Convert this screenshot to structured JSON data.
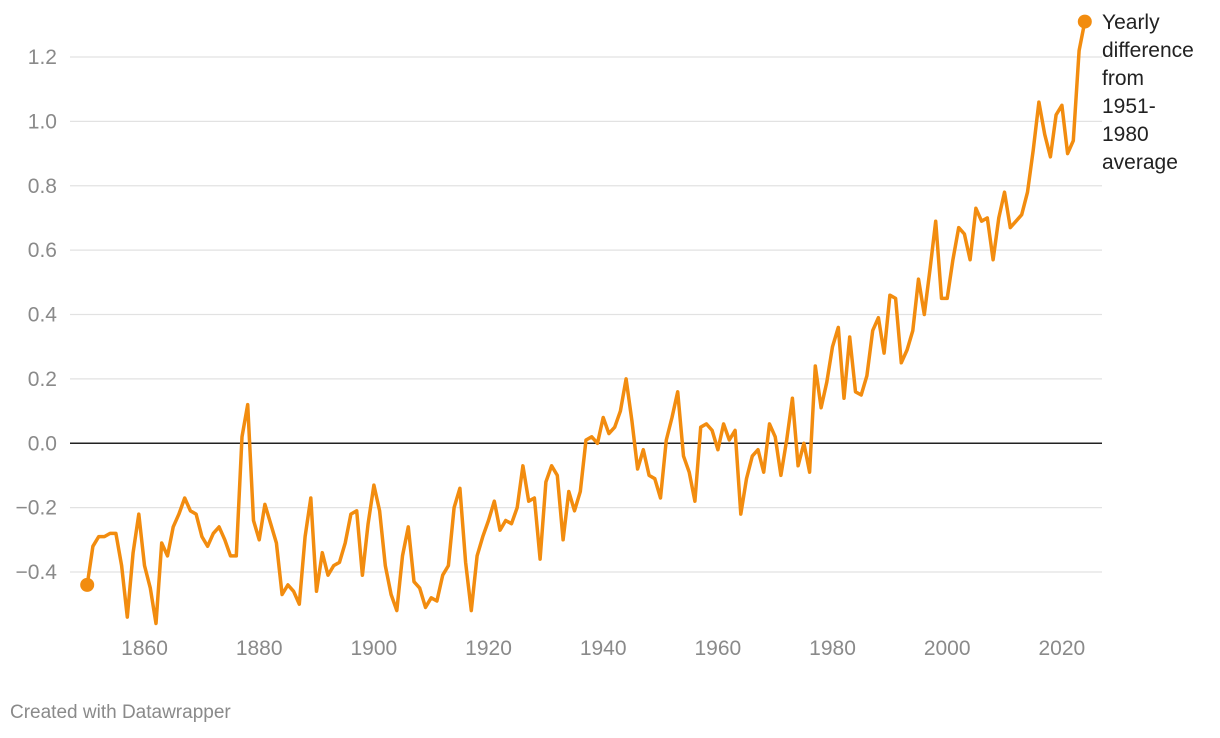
{
  "chart_data": {
    "type": "line",
    "title": "",
    "xlabel": "",
    "ylabel": "",
    "xlim": [
      1847,
      2027
    ],
    "ylim": [
      -0.6,
      1.3
    ],
    "y_ticks": [
      -0.4,
      -0.2,
      0.0,
      0.2,
      0.4,
      0.6,
      0.8,
      1.0,
      1.2
    ],
    "y_tick_labels": [
      "-0.4",
      "-0.2",
      "0.0",
      "0.2",
      "0.4",
      "0.6",
      "0.8",
      "1.0",
      "1.2"
    ],
    "x_ticks": [
      1860,
      1880,
      1900,
      1920,
      1940,
      1960,
      1980,
      2000,
      2020
    ],
    "x_tick_labels": [
      "1860",
      "1880",
      "1900",
      "1920",
      "1940",
      "1960",
      "1980",
      "2000",
      "2020"
    ],
    "grid": true,
    "zero_line": true,
    "series": [
      {
        "label_lines": [
          "Yearly",
          "difference",
          "from",
          "1951-",
          "1980",
          "average"
        ],
        "color": "#f28c0f",
        "x": [
          1850,
          1851,
          1852,
          1853,
          1854,
          1855,
          1856,
          1857,
          1858,
          1859,
          1860,
          1861,
          1862,
          1863,
          1864,
          1865,
          1866,
          1867,
          1868,
          1869,
          1870,
          1871,
          1872,
          1873,
          1874,
          1875,
          1876,
          1877,
          1878,
          1879,
          1880,
          1881,
          1882,
          1883,
          1884,
          1885,
          1886,
          1887,
          1888,
          1889,
          1890,
          1891,
          1892,
          1893,
          1894,
          1895,
          1896,
          1897,
          1898,
          1899,
          1900,
          1901,
          1902,
          1903,
          1904,
          1905,
          1906,
          1907,
          1908,
          1909,
          1910,
          1911,
          1912,
          1913,
          1914,
          1915,
          1916,
          1917,
          1918,
          1919,
          1920,
          1921,
          1922,
          1923,
          1924,
          1925,
          1926,
          1927,
          1928,
          1929,
          1930,
          1931,
          1932,
          1933,
          1934,
          1935,
          1936,
          1937,
          1938,
          1939,
          1940,
          1941,
          1942,
          1943,
          1944,
          1945,
          1946,
          1947,
          1948,
          1949,
          1950,
          1951,
          1952,
          1953,
          1954,
          1955,
          1956,
          1957,
          1958,
          1959,
          1960,
          1961,
          1962,
          1963,
          1964,
          1965,
          1966,
          1967,
          1968,
          1969,
          1970,
          1971,
          1972,
          1973,
          1974,
          1975,
          1976,
          1977,
          1978,
          1979,
          1980,
          1981,
          1982,
          1983,
          1984,
          1985,
          1986,
          1987,
          1988,
          1989,
          1990,
          1991,
          1992,
          1993,
          1994,
          1995,
          1996,
          1997,
          1998,
          1999,
          2000,
          2001,
          2002,
          2003,
          2004,
          2005,
          2006,
          2007,
          2008,
          2009,
          2010,
          2011,
          2012,
          2013,
          2014,
          2015,
          2016,
          2017,
          2018,
          2019,
          2020,
          2021,
          2022,
          2023,
          2024
        ],
        "y": [
          -0.44,
          -0.32,
          -0.29,
          -0.29,
          -0.28,
          -0.28,
          -0.38,
          -0.54,
          -0.34,
          -0.22,
          -0.38,
          -0.45,
          -0.56,
          -0.31,
          -0.35,
          -0.26,
          -0.22,
          -0.17,
          -0.21,
          -0.22,
          -0.29,
          -0.32,
          -0.28,
          -0.26,
          -0.3,
          -0.35,
          -0.35,
          0.02,
          0.12,
          -0.24,
          -0.3,
          -0.19,
          -0.25,
          -0.31,
          -0.47,
          -0.44,
          -0.46,
          -0.5,
          -0.29,
          -0.17,
          -0.46,
          -0.34,
          -0.41,
          -0.38,
          -0.37,
          -0.31,
          -0.22,
          -0.21,
          -0.41,
          -0.25,
          -0.13,
          -0.21,
          -0.38,
          -0.47,
          -0.52,
          -0.35,
          -0.26,
          -0.43,
          -0.45,
          -0.51,
          -0.48,
          -0.49,
          -0.41,
          -0.38,
          -0.2,
          -0.14,
          -0.37,
          -0.52,
          -0.35,
          -0.29,
          -0.24,
          -0.18,
          -0.27,
          -0.24,
          -0.25,
          -0.2,
          -0.07,
          -0.18,
          -0.17,
          -0.36,
          -0.12,
          -0.07,
          -0.1,
          -0.3,
          -0.15,
          -0.21,
          -0.15,
          0.01,
          0.02,
          0.0,
          0.08,
          0.03,
          0.05,
          0.1,
          0.2,
          0.07,
          -0.08,
          -0.02,
          -0.1,
          -0.11,
          -0.17,
          0.01,
          0.08,
          0.16,
          -0.04,
          -0.09,
          -0.18,
          0.05,
          0.06,
          0.04,
          -0.02,
          0.06,
          0.01,
          0.04,
          -0.22,
          -0.11,
          -0.04,
          -0.02,
          -0.09,
          0.06,
          0.02,
          -0.1,
          0.01,
          0.14,
          -0.07,
          0.0,
          -0.09,
          0.24,
          0.11,
          0.19,
          0.3,
          0.36,
          0.14,
          0.33,
          0.16,
          0.15,
          0.21,
          0.35,
          0.39,
          0.28,
          0.46,
          0.45,
          0.25,
          0.29,
          0.35,
          0.51,
          0.4,
          0.54,
          0.69,
          0.45,
          0.45,
          0.57,
          0.67,
          0.65,
          0.57,
          0.73,
          0.69,
          0.7,
          0.57,
          0.7,
          0.78,
          0.67,
          0.69,
          0.71,
          0.78,
          0.91,
          1.06,
          0.96,
          0.89,
          1.02,
          1.05,
          0.9,
          0.94,
          1.22,
          1.31
        ]
      }
    ],
    "credit": "Created with Datawrapper"
  }
}
